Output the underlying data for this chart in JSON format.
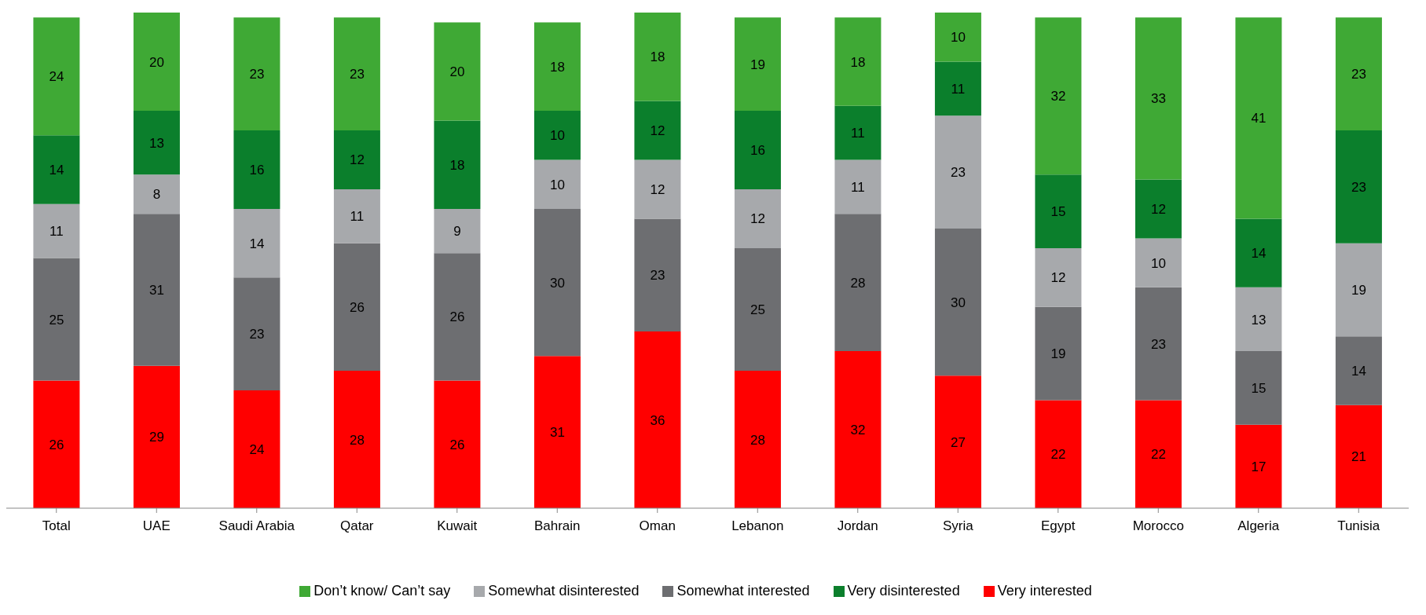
{
  "chart_data": {
    "type": "bar",
    "stacked": true,
    "data_labels": true,
    "legend": "bottom",
    "grid": false,
    "tick_labels": "x",
    "categories": [
      "Total",
      "UAE",
      "Saudi Arabia",
      "Qatar",
      "Kuwait",
      "Bahrain",
      "Oman",
      "Lebanon",
      "Jordan",
      "Syria",
      "Egypt",
      "Morocco",
      "Algeria",
      "Tunisia"
    ],
    "series": [
      {
        "name": "Very interested",
        "color": "#ff0000",
        "values": [
          26,
          29,
          24,
          28,
          26,
          31,
          36,
          28,
          32,
          27,
          22,
          22,
          17,
          21
        ]
      },
      {
        "name": "Somewhat interested",
        "color": "#6d6e71",
        "values": [
          25,
          31,
          23,
          26,
          26,
          30,
          23,
          25,
          28,
          30,
          19,
          23,
          15,
          14
        ]
      },
      {
        "name": "Somewhat disinterested",
        "color": "#a7a9ac",
        "values": [
          11,
          8,
          14,
          11,
          9,
          10,
          12,
          12,
          11,
          23,
          12,
          10,
          13,
          19
        ]
      },
      {
        "name": "Very disinterested",
        "color": "#0b7f2c",
        "values": [
          14,
          13,
          16,
          12,
          18,
          10,
          12,
          16,
          11,
          11,
          15,
          12,
          14,
          23
        ]
      },
      {
        "name": "Don’t know/ Can’t say",
        "color": "#3fa935",
        "values": [
          24,
          20,
          23,
          23,
          20,
          18,
          18,
          19,
          18,
          10,
          32,
          33,
          41,
          23
        ]
      }
    ]
  }
}
